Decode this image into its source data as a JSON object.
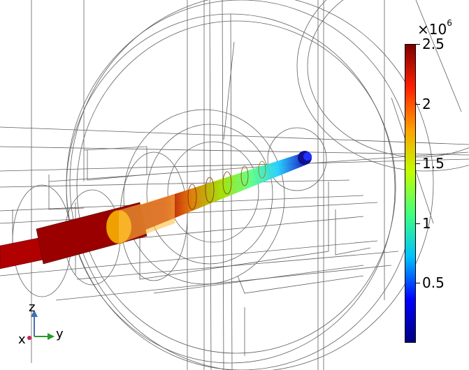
{
  "colors": {
    "scale": [
      "#00007f",
      "#0000ff",
      "#00c0ff",
      "#40ff80",
      "#c0ff00",
      "#ffa000",
      "#ff2000",
      "#7f0000"
    ],
    "wire": "#444444",
    "axis_y": "#2a9a2a",
    "axis_z": "#3f6fb0",
    "axis_x": "#d02060"
  },
  "colorbar": {
    "multiplier": "×10",
    "exponent": "6",
    "ticks": [
      {
        "label": "2.5",
        "value": 2.5
      },
      {
        "label": "2",
        "value": 2.0
      },
      {
        "label": "1.5",
        "value": 1.5
      },
      {
        "label": "1",
        "value": 1.0
      },
      {
        "label": "0.5",
        "value": 0.5
      }
    ],
    "range": [
      0.0,
      2.5
    ]
  },
  "axis_triad": {
    "x": "x",
    "y": "y",
    "z": "z"
  }
}
